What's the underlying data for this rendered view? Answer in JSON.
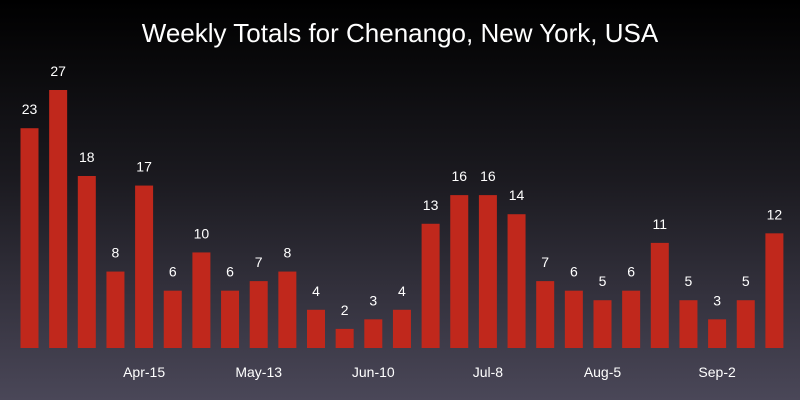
{
  "chart_data": {
    "type": "bar",
    "title": "Weekly Totals for Chenango, New York, USA",
    "xlabel": "",
    "ylabel": "",
    "categories": [
      "",
      "",
      "",
      "",
      "Apr-15",
      "",
      "",
      "",
      "May-13",
      "",
      "",
      "",
      "Jun-10",
      "",
      "",
      "",
      "Jul-8",
      "",
      "",
      "",
      "Aug-5",
      "",
      "",
      "",
      "Sep-2",
      "",
      ""
    ],
    "values": [
      23,
      27,
      18,
      8,
      17,
      6,
      10,
      6,
      7,
      8,
      4,
      2,
      3,
      4,
      13,
      16,
      16,
      14,
      7,
      6,
      5,
      6,
      11,
      5,
      3,
      5,
      12
    ],
    "ylim": [
      0,
      27
    ],
    "grid": false,
    "data_labels": true,
    "bar_color": "#c0281c",
    "background_top": "#000000",
    "background_bottom": "#4a4758",
    "text_color": "#ffffff"
  }
}
